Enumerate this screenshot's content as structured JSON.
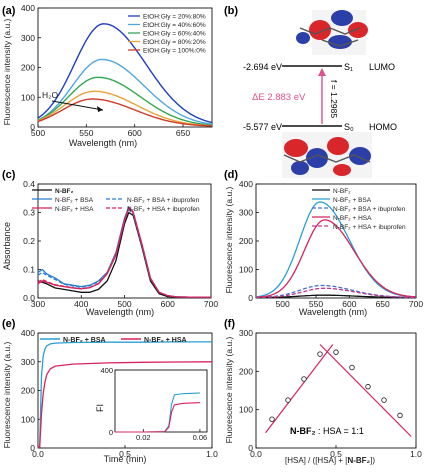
{
  "figure": {
    "panels": [
      "(a)",
      "(b)",
      "(c)",
      "(d)",
      "(e)",
      "(f)"
    ]
  },
  "chart_data": [
    {
      "id": "a",
      "type": "line",
      "xlabel": "Wavelength (nm)",
      "ylabel": "Fluorescence intensity (a.u.)",
      "xlim": [
        500,
        680
      ],
      "ylim": [
        0,
        400
      ],
      "xticks": [
        500,
        550,
        600,
        650
      ],
      "yticks": [
        0,
        100,
        200,
        300,
        400
      ],
      "legend_position": "top-right",
      "annotation": "H₂O",
      "series": [
        {
          "name": "EtOH:Gly = 20%:80%",
          "color": "#1f3fbf",
          "peak_x": 568,
          "peak": 345,
          "width": 38
        },
        {
          "name": "EtOH:Gly = 40%:60%",
          "color": "#4fa8e0",
          "peak_x": 566,
          "peak": 225,
          "width": 38
        },
        {
          "name": "EtOH:Gly = 60%:40%",
          "color": "#33a852",
          "peak_x": 562,
          "peak": 165,
          "width": 38
        },
        {
          "name": "EtOH:Gly = 80%:20%",
          "color": "#e8a33a",
          "peak_x": 558,
          "peak": 118,
          "width": 38
        },
        {
          "name": "EtOH:Gly = 100%:0%",
          "color": "#d13b2a",
          "peak_x": 556,
          "peak": 92,
          "width": 38
        }
      ]
    },
    {
      "id": "b",
      "type": "diagram",
      "levels": [
        {
          "energy": "-2.694 eV",
          "state": "S₁",
          "orbital": "LUMO"
        },
        {
          "energy": "-5.577 eV",
          "state": "S₀",
          "orbital": "HOMO"
        }
      ],
      "delta_e": "ΔE 2.883 eV",
      "oscillator": "f = 1.2985",
      "colors": {
        "transition": "#e0508a",
        "positive_lobe": "#d8262b",
        "negative_lobe": "#2c3fa8"
      }
    },
    {
      "id": "c",
      "type": "line",
      "xlabel": "Wavelength (nm)",
      "ylabel": "Absorbance",
      "xlim": [
        300,
        700
      ],
      "ylim": [
        0.0,
        0.4
      ],
      "xticks": [
        300,
        400,
        500,
        600,
        700
      ],
      "yticks": [
        0.0,
        0.1,
        0.2,
        0.3,
        0.4
      ],
      "legend_position": "top",
      "legend_text": {
        "s1": "N-BF₂",
        "s2": "N-BF₂ + BSA",
        "s3": "N-BF₂ + BSA + ibuprofen",
        "s4": "N-BF₂ + HSA",
        "s5": "N-BF₂ + HSA + ibuprofen"
      },
      "series": [
        {
          "name": "N-BF₂",
          "color": "#111111",
          "dash": "",
          "x": [
            300,
            320,
            340,
            360,
            380,
            400,
            420,
            440,
            460,
            480,
            500,
            510,
            520,
            540,
            560,
            580,
            600,
            620,
            650,
            700
          ],
          "y": [
            0.06,
            0.05,
            0.035,
            0.03,
            0.025,
            0.02,
            0.02,
            0.03,
            0.06,
            0.13,
            0.26,
            0.3,
            0.29,
            0.18,
            0.06,
            0.015,
            0.005,
            0.003,
            0.002,
            0.002
          ]
        },
        {
          "name": "N-BF₂ + BSA",
          "color": "#2a7fd4",
          "dash": "",
          "x": [
            300,
            310,
            320,
            340,
            360,
            380,
            400,
            420,
            440,
            460,
            480,
            500,
            510,
            520,
            540,
            560,
            580,
            600,
            620,
            650,
            700
          ],
          "y": [
            0.09,
            0.1,
            0.085,
            0.07,
            0.05,
            0.045,
            0.04,
            0.045,
            0.06,
            0.09,
            0.16,
            0.28,
            0.32,
            0.3,
            0.19,
            0.07,
            0.02,
            0.008,
            0.004,
            0.003,
            0.003
          ]
        },
        {
          "name": "N-BF₂ + BSA + ibuprofen",
          "color": "#2a7fd4",
          "dash": "4,2",
          "x": [
            300,
            310,
            320,
            340,
            360,
            380,
            400,
            420,
            440,
            460,
            480,
            500,
            510,
            520,
            540,
            560,
            580,
            600,
            620,
            650,
            700
          ],
          "y": [
            0.08,
            0.09,
            0.08,
            0.065,
            0.048,
            0.042,
            0.038,
            0.043,
            0.058,
            0.088,
            0.155,
            0.275,
            0.31,
            0.295,
            0.185,
            0.068,
            0.02,
            0.008,
            0.004,
            0.003,
            0.003
          ]
        },
        {
          "name": "N-BF₂ + HSA",
          "color": "#d6245c",
          "dash": "",
          "x": [
            300,
            310,
            320,
            340,
            360,
            380,
            400,
            420,
            440,
            460,
            480,
            500,
            510,
            520,
            540,
            560,
            580,
            600,
            620,
            650,
            700
          ],
          "y": [
            0.05,
            0.06,
            0.055,
            0.045,
            0.04,
            0.035,
            0.032,
            0.036,
            0.05,
            0.085,
            0.15,
            0.27,
            0.315,
            0.3,
            0.19,
            0.07,
            0.02,
            0.008,
            0.004,
            0.003,
            0.003
          ]
        },
        {
          "name": "N-BF₂ + HSA + ibuprofen",
          "color": "#d6245c",
          "dash": "4,2",
          "x": [
            300,
            310,
            320,
            340,
            360,
            380,
            400,
            420,
            440,
            460,
            480,
            500,
            510,
            520,
            540,
            560,
            580,
            600,
            620,
            650,
            700
          ],
          "y": [
            0.055,
            0.065,
            0.058,
            0.047,
            0.041,
            0.036,
            0.033,
            0.037,
            0.052,
            0.088,
            0.155,
            0.275,
            0.318,
            0.302,
            0.19,
            0.07,
            0.02,
            0.008,
            0.004,
            0.003,
            0.003
          ]
        }
      ]
    },
    {
      "id": "d",
      "type": "line",
      "xlabel": "Wavelength (nm)",
      "ylabel": "Fluorescence intensity (a.u.)",
      "xlim": [
        460,
        700
      ],
      "ylim": [
        0,
        400
      ],
      "xticks": [
        500,
        550,
        600,
        650,
        700
      ],
      "yticks": [
        0,
        100,
        200,
        300,
        400
      ],
      "legend_position": "top-right",
      "legend_text": {
        "s1": "N-BF₂",
        "s2": "N-BF₂ + BSA",
        "s3": "N-BF₂ + BSA + ibuprofen",
        "s4": "N-BF₂ + HSA",
        "s5": "N-BF₂ + HSA + ibuprofen"
      },
      "series": [
        {
          "name": "N-BF₂",
          "color": "#111111",
          "dash": "",
          "peak_x": 560,
          "peak": 8,
          "width": 40
        },
        {
          "name": "N-BF₂ + BSA",
          "color": "#2a9fd4",
          "dash": "",
          "peak_x": 556,
          "peak": 335,
          "width": 38
        },
        {
          "name": "N-BF₂ + BSA + ibuprofen",
          "color": "#4a6fd4",
          "dash": "4,2",
          "peak_x": 558,
          "peak": 42,
          "width": 40
        },
        {
          "name": "N-BF₂ + HSA",
          "color": "#d6245c",
          "dash": "",
          "peak_x": 563,
          "peak": 272,
          "width": 38
        },
        {
          "name": "N-BF₂ + HSA + ibuprofen",
          "color": "#c03a8a",
          "dash": "4,2",
          "peak_x": 562,
          "peak": 32,
          "width": 40
        }
      ]
    },
    {
      "id": "e",
      "type": "line",
      "xlabel": "Time (min)",
      "ylabel": "Fluorescence intensity (a.u.)",
      "xlim": [
        0,
        1.0
      ],
      "ylim": [
        0,
        400
      ],
      "xticks": [
        0.0,
        0.5,
        1.0
      ],
      "yticks": [
        0,
        100,
        200,
        300,
        400
      ],
      "legend_position": "top",
      "legend_text": {
        "s1": "N-BF₂ + BSA",
        "s2": "N-BF₂ + HSA"
      },
      "series": [
        {
          "name": "N-BF₂ + BSA",
          "color": "#2a9fd4",
          "x": [
            0,
            0.01,
            0.02,
            0.03,
            0.04,
            0.05,
            0.07,
            0.1,
            0.2,
            0.4,
            0.6,
            0.8,
            1.0
          ],
          "y": [
            0,
            5,
            250,
            320,
            345,
            355,
            362,
            365,
            367,
            368,
            368,
            369,
            369
          ]
        },
        {
          "name": "N-BF₂ + HSA",
          "color": "#d6245c",
          "x": [
            0,
            0.01,
            0.02,
            0.03,
            0.04,
            0.05,
            0.07,
            0.1,
            0.2,
            0.4,
            0.6,
            0.8,
            1.0
          ],
          "y": [
            0,
            3,
            120,
            190,
            230,
            255,
            275,
            285,
            292,
            296,
            298,
            299,
            300
          ]
        }
      ],
      "inset": {
        "xlabel": "",
        "ylabel": "FI",
        "xlim": [
          0.0,
          0.065
        ],
        "ylim": [
          0,
          400
        ],
        "xticks": [
          0.02,
          0.06
        ],
        "yticks": [
          0,
          400
        ],
        "series": [
          {
            "name": "N-BF₂ + BSA",
            "color": "#2a9fd4",
            "x": [
              0,
              0.02,
              0.035,
              0.038,
              0.04,
              0.042,
              0.046,
              0.05,
              0.055,
              0.06
            ],
            "y": [
              0,
              0,
              2,
              40,
              180,
              240,
              245,
              248,
              250,
              252
            ]
          },
          {
            "name": "N-BF₂ + HSA",
            "color": "#d6245c",
            "x": [
              0,
              0.02,
              0.035,
              0.038,
              0.04,
              0.042,
              0.046,
              0.05,
              0.055,
              0.06
            ],
            "y": [
              0,
              0,
              2,
              30,
              130,
              175,
              182,
              186,
              188,
              190
            ]
          }
        ]
      }
    },
    {
      "id": "f",
      "type": "scatter",
      "xlabel_parts": {
        "a": "[HSA] / ([HSA] + [",
        "b": "N-BF₂",
        "c": "])"
      },
      "ylabel": "Fluorescence intensity (a.u.)",
      "xlim": [
        0.0,
        1.0
      ],
      "ylim": [
        0,
        300
      ],
      "xticks": [
        0.0,
        0.5,
        1.0
      ],
      "yticks": [
        0,
        100,
        200,
        300
      ],
      "annotation_parts": {
        "a": "N-BF₂",
        "b": " : HSA = 1:1"
      },
      "fit_lines": [
        {
          "x": [
            0.06,
            0.48
          ],
          "y": [
            40,
            270
          ]
        },
        {
          "x": [
            0.4,
            0.97
          ],
          "y": [
            270,
            30
          ]
        }
      ],
      "points": {
        "x": [
          0.1,
          0.2,
          0.3,
          0.4,
          0.5,
          0.6,
          0.7,
          0.8,
          0.9
        ],
        "y": [
          75,
          125,
          180,
          245,
          250,
          210,
          160,
          125,
          85
        ]
      },
      "color": "#d6245c"
    }
  ]
}
